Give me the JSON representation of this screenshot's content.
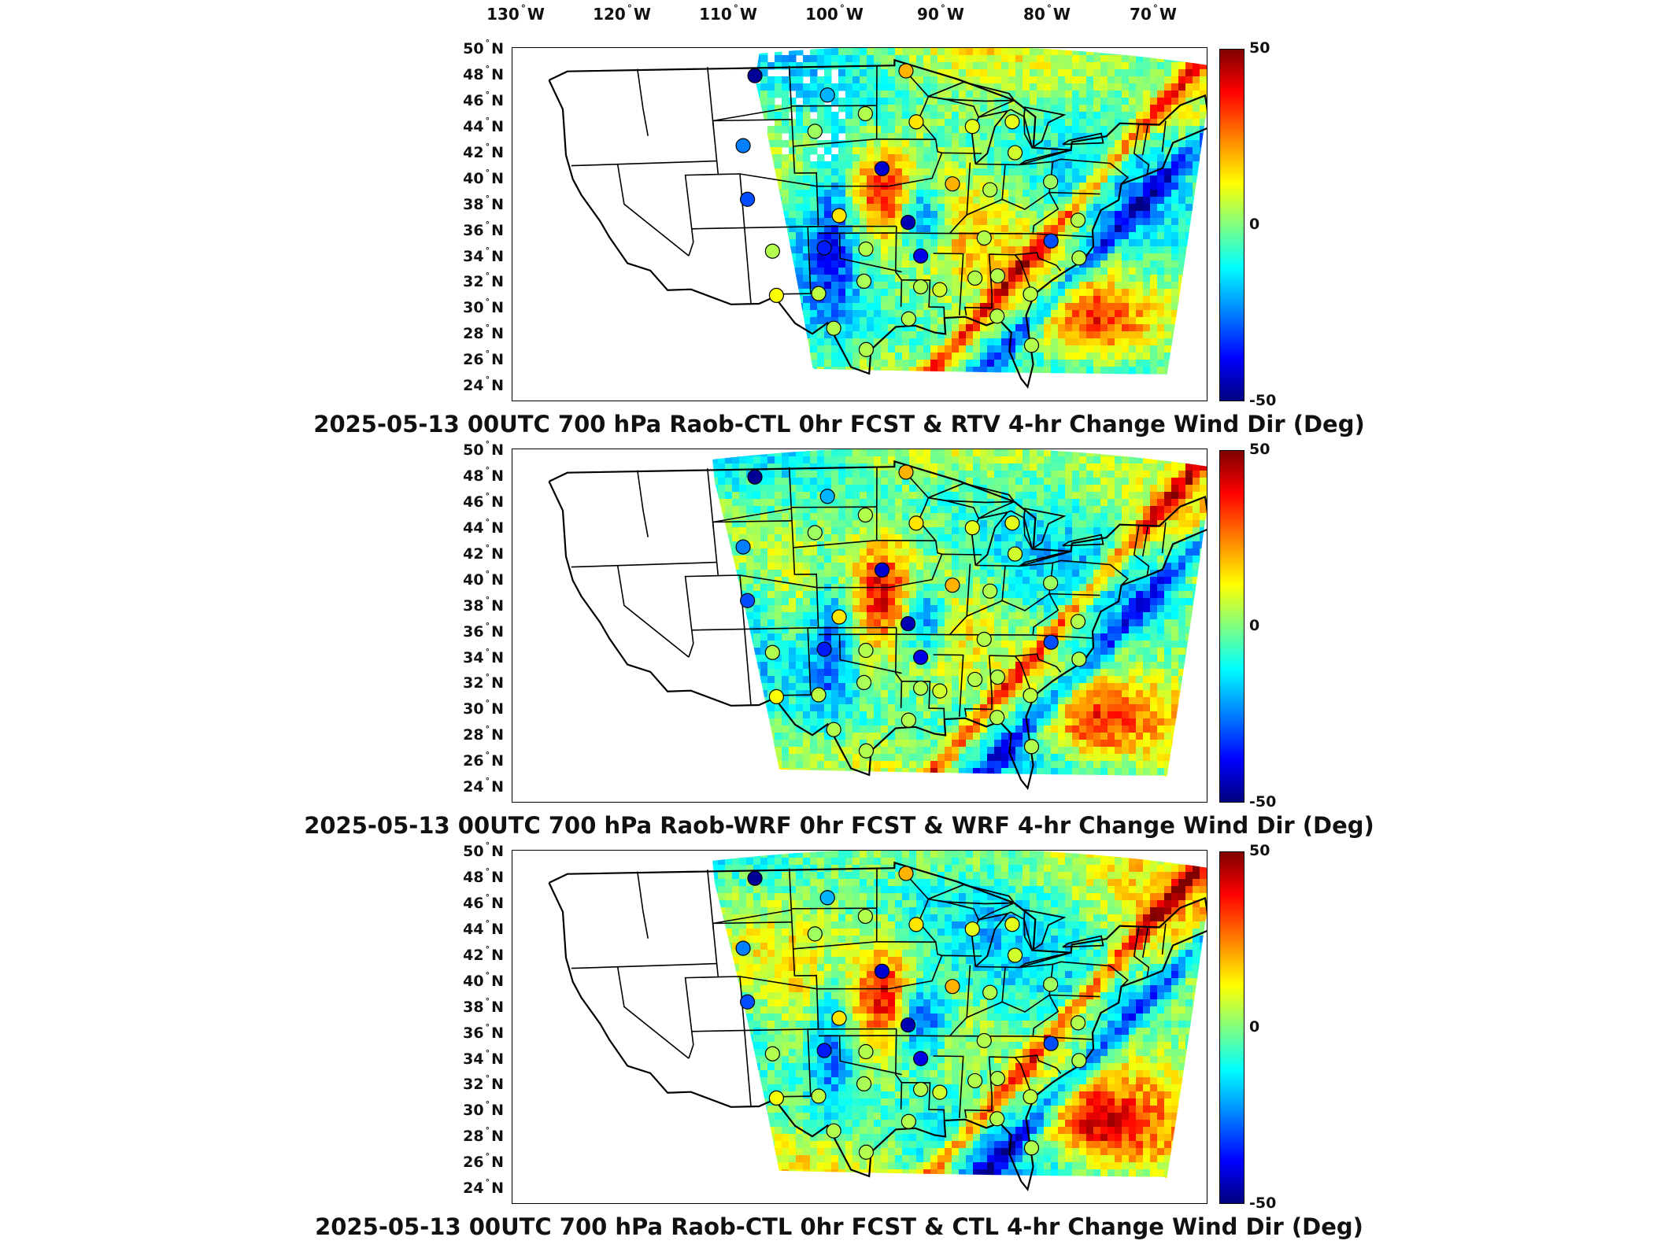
{
  "longitude_labels": [
    {
      "deg": "130",
      "dir": "W"
    },
    {
      "deg": "120",
      "dir": "W"
    },
    {
      "deg": "110",
      "dir": "W"
    },
    {
      "deg": "100",
      "dir": "W"
    },
    {
      "deg": "90",
      "dir": "W"
    },
    {
      "deg": "80",
      "dir": "W"
    },
    {
      "deg": "70",
      "dir": "W"
    }
  ],
  "latitude_labels": [
    {
      "deg": "50",
      "dir": "N"
    },
    {
      "deg": "48",
      "dir": "N"
    },
    {
      "deg": "46",
      "dir": "N"
    },
    {
      "deg": "44",
      "dir": "N"
    },
    {
      "deg": "42",
      "dir": "N"
    },
    {
      "deg": "40",
      "dir": "N"
    },
    {
      "deg": "38",
      "dir": "N"
    },
    {
      "deg": "36",
      "dir": "N"
    },
    {
      "deg": "34",
      "dir": "N"
    },
    {
      "deg": "32",
      "dir": "N"
    },
    {
      "deg": "30",
      "dir": "N"
    },
    {
      "deg": "28",
      "dir": "N"
    },
    {
      "deg": "26",
      "dir": "N"
    },
    {
      "deg": "24",
      "dir": "N"
    }
  ],
  "colorbar": {
    "max": "50",
    "mid": "0",
    "min": "-50",
    "colors": [
      "#800000",
      "#ff0000",
      "#ff8000",
      "#ffff00",
      "#80ff80",
      "#00ffff",
      "#0080ff",
      "#0000ff",
      "#000080"
    ]
  },
  "panels": [
    {
      "title": "2025-05-13 00UTC 700 hPa Raob-CTL 0hr FCST & RTV 4-hr Change Wind Dir (Deg)"
    },
    {
      "title": "2025-05-13 00UTC 700 hPa Raob-WRF 0hr FCST & WRF 4-hr Change Wind Dir (Deg)"
    },
    {
      "title": "2025-05-13 00UTC 700 hPa Raob-CTL 0hr FCST & CTL 4-hr Change Wind Dir (Deg)"
    }
  ],
  "raob_stations": [
    {
      "lon": -107,
      "lat": 48.3,
      "value": -48
    },
    {
      "lon": -100.8,
      "lat": 46.8,
      "value": -20
    },
    {
      "lon": -94,
      "lat": 48.6,
      "value": 20
    },
    {
      "lon": -97.5,
      "lat": 45.4,
      "value": 5
    },
    {
      "lon": -102,
      "lat": 44.1,
      "value": 3
    },
    {
      "lon": -93,
      "lat": 44.8,
      "value": 15
    },
    {
      "lon": -88,
      "lat": 44.5,
      "value": 10
    },
    {
      "lon": -84.5,
      "lat": 44.9,
      "value": 10
    },
    {
      "lon": -84,
      "lat": 42.6,
      "value": 8
    },
    {
      "lon": -108.5,
      "lat": 43.1,
      "value": -25
    },
    {
      "lon": -96,
      "lat": 41.3,
      "value": -42
    },
    {
      "lon": -89.5,
      "lat": 40.2,
      "value": 20
    },
    {
      "lon": -86,
      "lat": 39.8,
      "value": 5
    },
    {
      "lon": -80.5,
      "lat": 40.5,
      "value": 3
    },
    {
      "lon": -108.5,
      "lat": 39.1,
      "value": -30
    },
    {
      "lon": -100,
      "lat": 37.8,
      "value": 15
    },
    {
      "lon": -93.5,
      "lat": 37.3,
      "value": -45
    },
    {
      "lon": -77.5,
      "lat": 37.7,
      "value": 5
    },
    {
      "lon": -106.5,
      "lat": 35.2,
      "value": 5
    },
    {
      "lon": -101.5,
      "lat": 35.4,
      "value": -35
    },
    {
      "lon": -97.5,
      "lat": 35.3,
      "value": 5
    },
    {
      "lon": -92.2,
      "lat": 34.8,
      "value": -40
    },
    {
      "lon": -86.2,
      "lat": 36.2,
      "value": 5
    },
    {
      "lon": -79.8,
      "lat": 36.1,
      "value": -30
    },
    {
      "lon": -76.9,
      "lat": 34.9,
      "value": 5
    },
    {
      "lon": -106.4,
      "lat": 31.9,
      "value": 12
    },
    {
      "lon": -102.2,
      "lat": 32,
      "value": 6
    },
    {
      "lon": -97.7,
      "lat": 32.9,
      "value": 4
    },
    {
      "lon": -92.1,
      "lat": 32.5,
      "value": 5
    },
    {
      "lon": -90.2,
      "lat": 32.3,
      "value": 8
    },
    {
      "lon": -86.8,
      "lat": 33.2,
      "value": 5
    },
    {
      "lon": -84.6,
      "lat": 33.4,
      "value": 5
    },
    {
      "lon": -81.2,
      "lat": 32.1,
      "value": 6
    },
    {
      "lon": -100.8,
      "lat": 29.4,
      "value": 5
    },
    {
      "lon": -97.5,
      "lat": 27.8,
      "value": 5
    },
    {
      "lon": -93.2,
      "lat": 30.1,
      "value": 5
    },
    {
      "lon": -84.3,
      "lat": 30.4,
      "value": 5
    },
    {
      "lon": -80.5,
      "lat": 28.3,
      "value": 5
    }
  ]
}
